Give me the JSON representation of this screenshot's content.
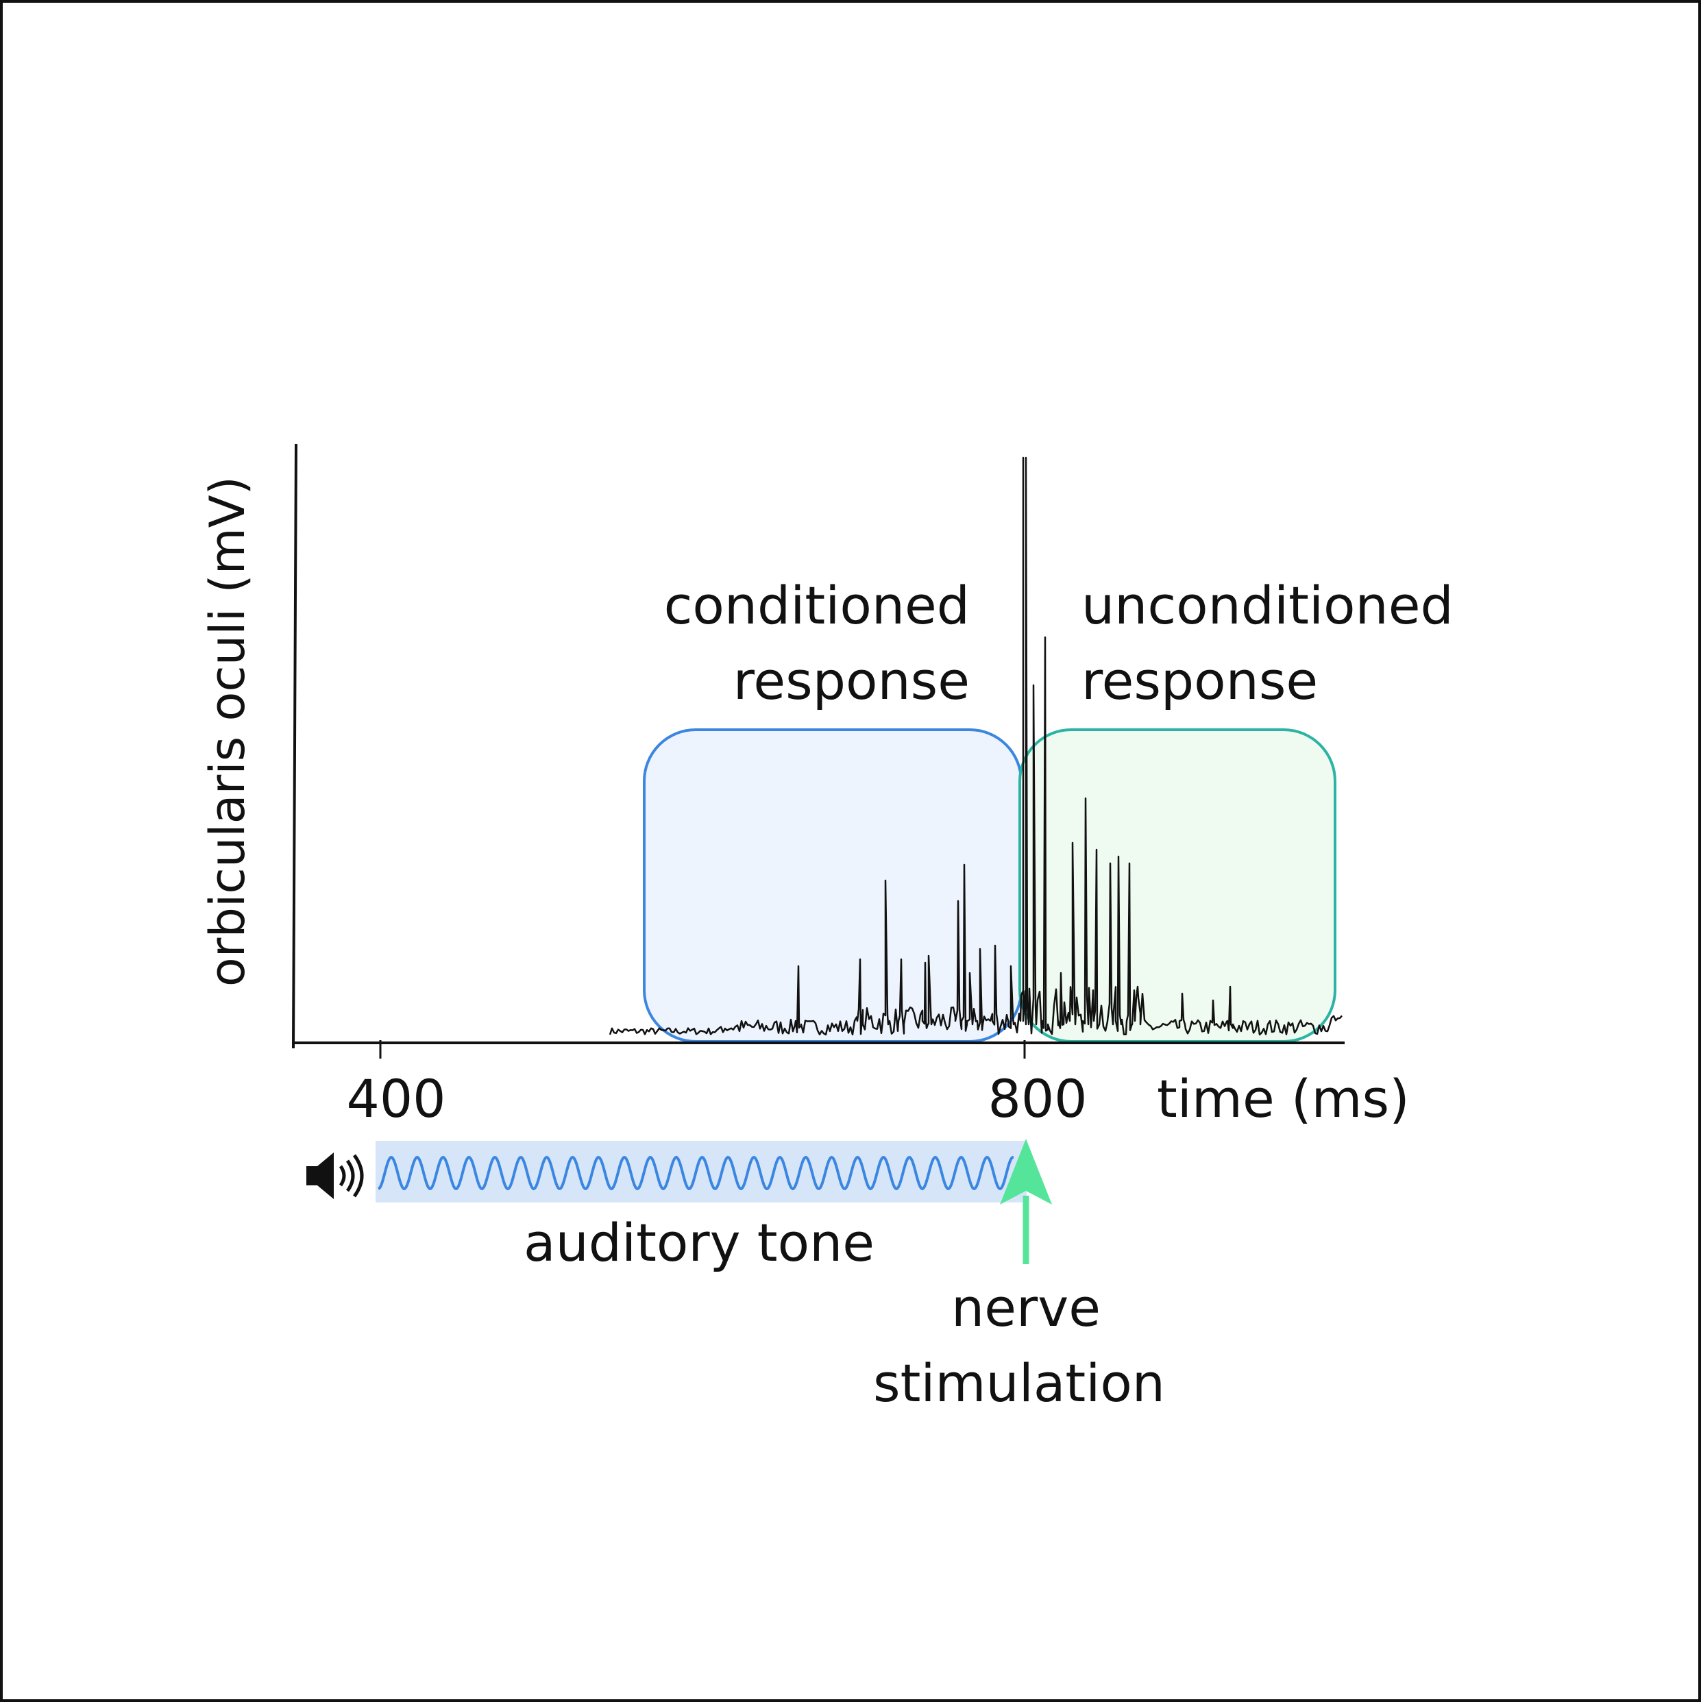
{
  "figure": {
    "ylabel": "orbicularis oculi (mV)",
    "xlabel": "time (ms)",
    "x_ticks": [
      "400",
      "800"
    ],
    "conditioned_label": [
      "conditioned",
      "response"
    ],
    "unconditioned_label": [
      "unconditioned",
      "response"
    ],
    "tone_label": "auditory tone",
    "stimulus_label": [
      "nerve",
      "stimulation"
    ],
    "icons": {
      "speaker": "speaker-icon",
      "arrow": "up-arrow-icon"
    },
    "colors": {
      "conditioned_border": "#3b86e0",
      "conditioned_fill": "#eef4fd",
      "unconditioned_border": "#2bb3a3",
      "unconditioned_fill": "#effbf0",
      "tone_wave": "#3b86e0",
      "tone_band": "#d6e6f8",
      "stimulus_arrow": "#55e59a",
      "trace": "#111111"
    }
  }
}
